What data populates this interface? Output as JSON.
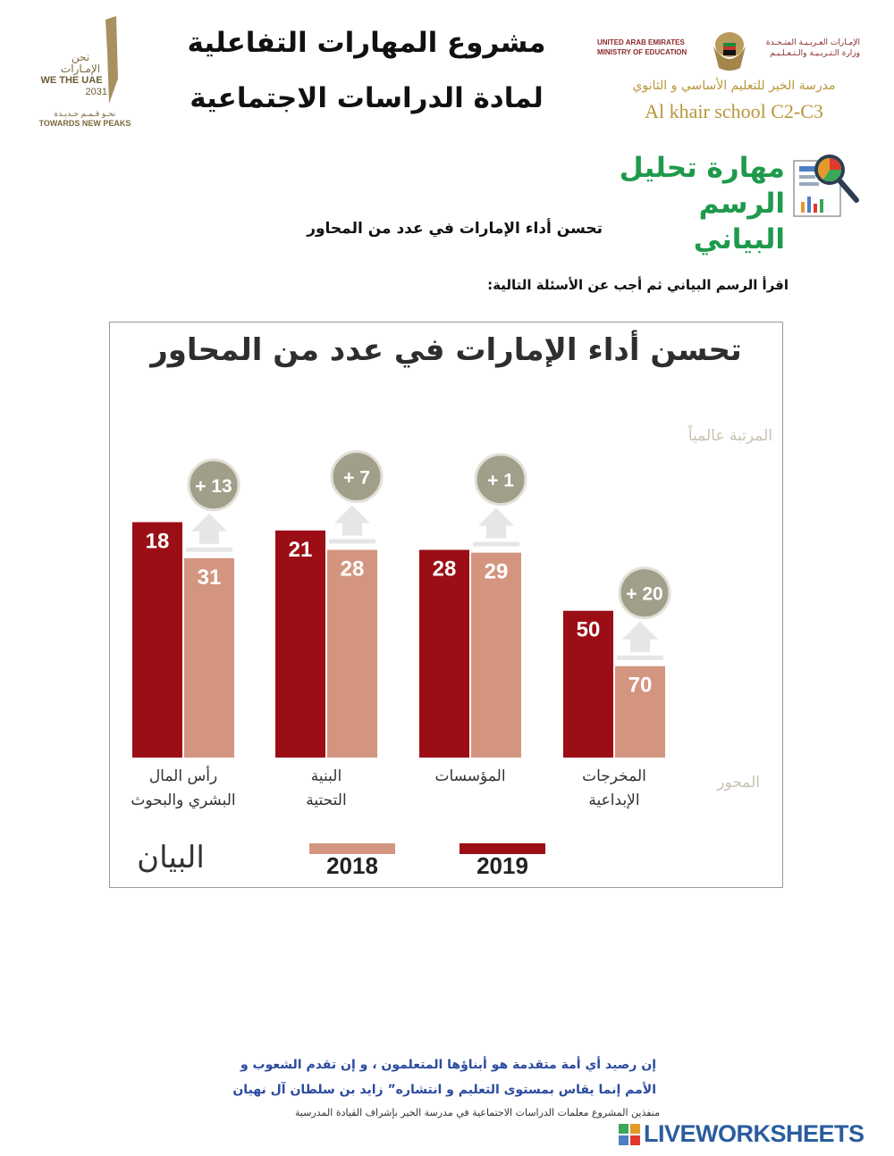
{
  "header": {
    "uae_vision": {
      "arabic_line1": "نحن",
      "arabic_line2": "الإمـارات",
      "english_line1": "WE THE UAE",
      "english_line2": "2031",
      "slogan_ar": "نحـو قـمـم جـديـدة",
      "slogan_en": "TOWARDS NEW PEAKS"
    },
    "project_title_line1": "مشروع المهارات التفاعلية",
    "project_title_line2": "لمادة الدراسات الاجتماعية",
    "ministry": {
      "en_line1": "UNITED ARAB EMIRATES",
      "en_line2": "MINISTRY OF EDUCATION",
      "ar_line1": "الإمـارات العـربـيـة المتـحـدة",
      "ar_line2": "وزارة الـتـربـيـة والـتـعـلـيـم"
    },
    "school_ar": "مدرسة الخير للتعليم الأساسي و الثانوي",
    "school_en": "Al khair school C2-C3",
    "skill_title_line1": "مهارة تحليل",
    "skill_title_line2": "الرسم البياني"
  },
  "subtitle": "تحسن أداء الإمارات في عدد من المحاور",
  "instruction": "اقرأ الرسم البياني ثم أجب عن الأسئلة التالية:",
  "chart_data": {
    "type": "bar",
    "title": "تحسن أداء الإمارات في عدد من المحاور",
    "ylabel": "المرتبة عالمياً",
    "xlabel": "المحور",
    "categories": [
      [
        "رأس المال",
        "البشري والبحوث"
      ],
      [
        "البنية",
        "التحتية"
      ],
      [
        "المؤسسات"
      ],
      [
        "المخرجات",
        "الإبداعية"
      ]
    ],
    "series": [
      {
        "name": "2019",
        "color": "#9b0e16",
        "values": [
          18,
          21,
          28,
          50
        ]
      },
      {
        "name": "2018",
        "color": "#d49580",
        "values": [
          31,
          28,
          29,
          70
        ]
      }
    ],
    "improvements": [
      "+ 13",
      "+ 7",
      "+ 1",
      "+ 20"
    ],
    "source": "البيان"
  },
  "footer": {
    "quote_line1": "إن رصيد أي أمة متقدمة هو أبناؤها المتعلمون ، و إن تقدم الشعوب و",
    "quote_line2": "الأمم إنما يقاس بمستوى التعليم و انتشاره” زايد بن سلطان آل نهيان",
    "credits": "منفذين المشروع معلمات الدراسات الاجتماعية في مدرسة الخير بإشراف القيادة المدرسية",
    "brand": "LIVEWORKSHEETS"
  }
}
